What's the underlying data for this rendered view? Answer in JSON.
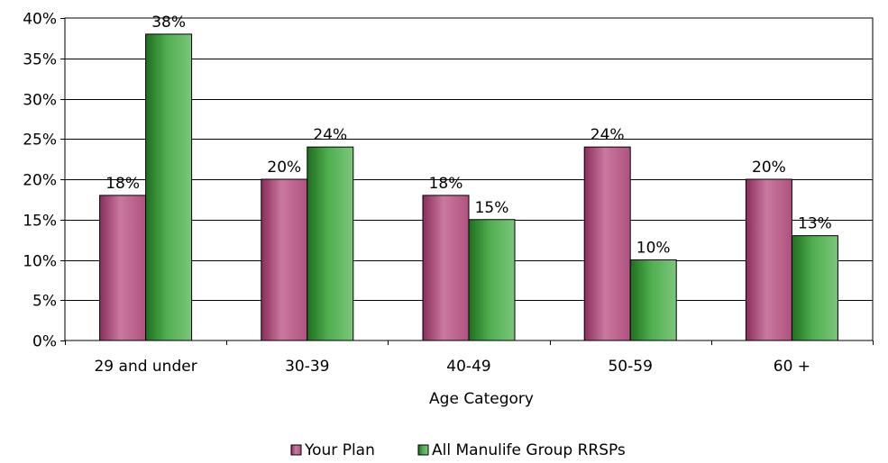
{
  "chart_data": {
    "type": "bar",
    "categories": [
      "29 and under",
      "30-39",
      "40-49",
      "50-59",
      "60 +"
    ],
    "series": [
      {
        "name": "Your Plan",
        "values": [
          18,
          20,
          18,
          24,
          20
        ],
        "labels": [
          "18%",
          "20%",
          "18%",
          "24%",
          "20%"
        ],
        "color": "#b0517f"
      },
      {
        "name": "All Manulife Group RRSPs",
        "values": [
          38,
          24,
          15,
          10,
          13
        ],
        "labels": [
          "38%",
          "24%",
          "15%",
          "10%",
          "13%"
        ],
        "color": "#3e9a3e"
      }
    ],
    "title": "",
    "xlabel": "Age Category",
    "ylabel": "",
    "ylim": [
      0,
      40
    ],
    "yticks": [
      0,
      5,
      10,
      15,
      20,
      25,
      30,
      35,
      40
    ],
    "ytick_labels": [
      "0%",
      "5%",
      "10%",
      "15%",
      "20%",
      "25%",
      "30%",
      "35%",
      "40%"
    ],
    "grid": true,
    "legend_position": "bottom"
  }
}
